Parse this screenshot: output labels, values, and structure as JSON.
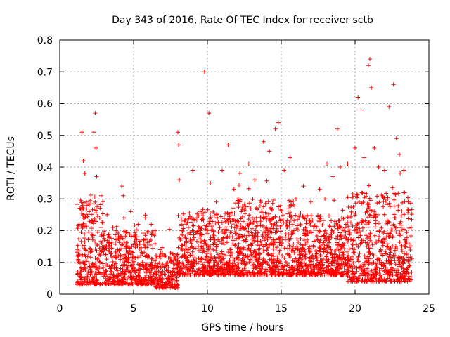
{
  "chart_data": {
    "type": "scatter",
    "title": "Day 343 of 2016, Rate Of TEC Index for receiver sctb",
    "xlabel": "GPS time / hours",
    "ylabel": "ROTI / TECUs",
    "xlim": [
      0,
      25
    ],
    "ylim": [
      0,
      0.8
    ],
    "xticks": [
      0,
      5,
      10,
      15,
      20,
      25
    ],
    "yticks": [
      0,
      0.1,
      0.2,
      0.3,
      0.4,
      0.5,
      0.6,
      0.7,
      0.8
    ],
    "ytick_labels": [
      "0",
      "0.1",
      "0.2",
      "0.3",
      "0.4",
      "0.5",
      "0.6",
      "0.7",
      "0.8"
    ],
    "grid": true,
    "marker": "+",
    "marker_color": "#ff0000",
    "series": [
      {
        "name": "ROTI",
        "points": [
          [
            1.3,
            0.22
          ],
          [
            1.5,
            0.51
          ],
          [
            1.6,
            0.42
          ],
          [
            1.7,
            0.38
          ],
          [
            1.8,
            0.29
          ],
          [
            2.0,
            0.26
          ],
          [
            2.3,
            0.51
          ],
          [
            2.4,
            0.57
          ],
          [
            2.45,
            0.46
          ],
          [
            2.5,
            0.37
          ],
          [
            2.8,
            0.31
          ],
          [
            3.2,
            0.25
          ],
          [
            3.6,
            0.21
          ],
          [
            4.2,
            0.34
          ],
          [
            4.3,
            0.31
          ],
          [
            4.8,
            0.26
          ],
          [
            5.3,
            0.22
          ],
          [
            5.8,
            0.24
          ],
          [
            6.2,
            0.22
          ],
          [
            6.8,
            0.14
          ],
          [
            7.5,
            0.13
          ],
          [
            8.0,
            0.51
          ],
          [
            8.05,
            0.47
          ],
          [
            8.1,
            0.36
          ],
          [
            8.5,
            0.18
          ],
          [
            9.0,
            0.39
          ],
          [
            9.5,
            0.26
          ],
          [
            9.8,
            0.7
          ],
          [
            10.1,
            0.57
          ],
          [
            10.2,
            0.35
          ],
          [
            10.6,
            0.29
          ],
          [
            11.0,
            0.39
          ],
          [
            11.4,
            0.47
          ],
          [
            11.8,
            0.33
          ],
          [
            12.2,
            0.38
          ],
          [
            12.8,
            0.41
          ],
          [
            13.2,
            0.36
          ],
          [
            13.8,
            0.48
          ],
          [
            14.2,
            0.45
          ],
          [
            14.6,
            0.52
          ],
          [
            14.8,
            0.54
          ],
          [
            15.2,
            0.39
          ],
          [
            15.6,
            0.43
          ],
          [
            16.0,
            0.3
          ],
          [
            16.5,
            0.34
          ],
          [
            17.0,
            0.29
          ],
          [
            17.6,
            0.33
          ],
          [
            18.1,
            0.41
          ],
          [
            18.5,
            0.37
          ],
          [
            18.8,
            0.52
          ],
          [
            19.0,
            0.4
          ],
          [
            19.5,
            0.41
          ],
          [
            20.0,
            0.46
          ],
          [
            20.2,
            0.62
          ],
          [
            20.4,
            0.58
          ],
          [
            20.6,
            0.43
          ],
          [
            20.9,
            0.72
          ],
          [
            21.0,
            0.74
          ],
          [
            21.1,
            0.65
          ],
          [
            21.3,
            0.46
          ],
          [
            21.6,
            0.4
          ],
          [
            22.0,
            0.39
          ],
          [
            22.3,
            0.59
          ],
          [
            22.6,
            0.66
          ],
          [
            22.8,
            0.49
          ],
          [
            23.0,
            0.44
          ],
          [
            23.3,
            0.39
          ],
          [
            23.6,
            0.29
          ],
          [
            23.8,
            0.21
          ]
        ]
      }
    ]
  }
}
